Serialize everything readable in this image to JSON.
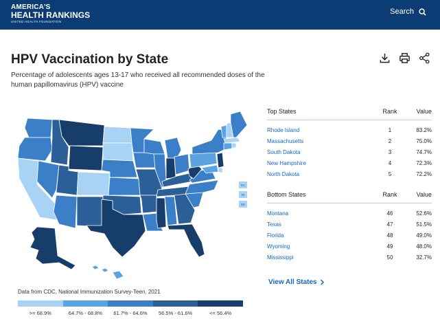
{
  "header": {
    "logo_line1": "AMERICA'S",
    "logo_line2": "HEALTH RANKINGS",
    "logo_line3": "UNITED HEALTH FOUNDATION",
    "search_label": "Search"
  },
  "page": {
    "title": "HPV Vaccination by State",
    "subtitle": "Percentage of adolescents ages 13-17 who received all recommended doses of the human papillomavirus (HPV) vaccine"
  },
  "map": {
    "small_state_buttons": [
      "DC",
      "RI",
      "DE"
    ],
    "colors": [
      "#a9d3f5",
      "#5ba3e3",
      "#3a7fc8",
      "#2a5f97",
      "#173d6b"
    ]
  },
  "source_note": "Data from CDC, National Immunization Survey-Teen, 2021",
  "legend": {
    "colors": [
      "#a9d3f5",
      "#5ba3e3",
      "#3a7fc8",
      "#2a5f97",
      "#173d6b"
    ],
    "labels": [
      ">= 68.9%",
      "64.7% - 68.8%",
      "61.7% - 64.6%",
      "56.5% - 61.6%",
      "<= 56.4%"
    ]
  },
  "top_states": {
    "header": "Top States",
    "rank_header": "Rank",
    "value_header": "Value",
    "rows": [
      {
        "state": "Rhode Island",
        "rank": "1",
        "value": "83.2%"
      },
      {
        "state": "Massachusetts",
        "rank": "2",
        "value": "75.0%"
      },
      {
        "state": "South Dakota",
        "rank": "3",
        "value": "74.7%"
      },
      {
        "state": "New Hampshire",
        "rank": "4",
        "value": "72.3%"
      },
      {
        "state": "North Dakota",
        "rank": "5",
        "value": "72.2%"
      }
    ]
  },
  "bottom_states": {
    "header": "Bottom States",
    "rank_header": "Rank",
    "value_header": "Value",
    "rows": [
      {
        "state": "Montana",
        "rank": "46",
        "value": "52.6%"
      },
      {
        "state": "Texas",
        "rank": "47",
        "value": "51.5%"
      },
      {
        "state": "Florida",
        "rank": "48",
        "value": "49.0%"
      },
      {
        "state": "Wyoming",
        "rank": "49",
        "value": "48.0%"
      },
      {
        "state": "Mississippi",
        "rank": "50",
        "value": "32.7%"
      }
    ]
  },
  "view_all_label": "View All States"
}
